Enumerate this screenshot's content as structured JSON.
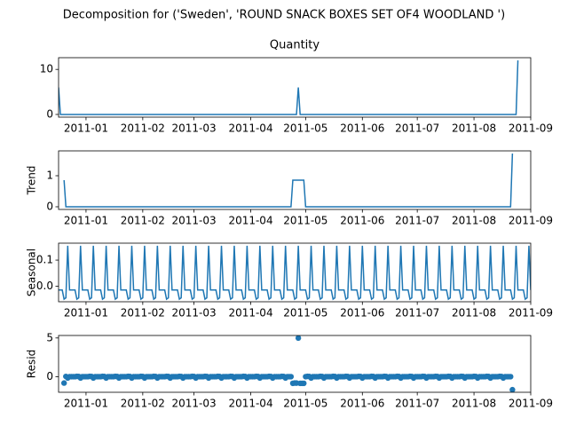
{
  "title": "Decomposition for ('Sweden', 'ROUND SNACK BOXES SET OF4 WOODLAND ')",
  "chart_data": [
    {
      "type": "line",
      "title": "Quantity",
      "color": "#1f77b4",
      "xlim": [
        0,
        258
      ],
      "xticks": [
        {
          "value": 15,
          "label": "2011-01"
        },
        {
          "value": 46,
          "label": "2011-02"
        },
        {
          "value": 74,
          "label": "2011-03"
        },
        {
          "value": 105,
          "label": "2011-04"
        },
        {
          "value": 135,
          "label": "2011-05"
        },
        {
          "value": 166,
          "label": "2011-06"
        },
        {
          "value": 196,
          "label": "2011-07"
        },
        {
          "value": 227,
          "label": "2011-08"
        },
        {
          "value": 258,
          "label": "2011-09"
        }
      ],
      "ylim": [
        -0.6,
        12.6
      ],
      "yticks": [
        0,
        10
      ],
      "values": [
        6,
        0,
        0,
        0,
        0,
        0,
        0,
        0,
        0,
        0,
        0,
        0,
        0,
        0,
        0,
        0,
        0,
        0,
        0,
        0,
        0,
        0,
        0,
        0,
        0,
        0,
        0,
        0,
        0,
        0,
        0,
        0,
        0,
        0,
        0,
        0,
        0,
        0,
        0,
        0,
        0,
        0,
        0,
        0,
        0,
        0,
        0,
        0,
        0,
        0,
        0,
        0,
        0,
        0,
        0,
        0,
        0,
        0,
        0,
        0,
        0,
        0,
        0,
        0,
        0,
        0,
        0,
        0,
        0,
        0,
        0,
        0,
        0,
        0,
        0,
        0,
        0,
        0,
        0,
        0,
        0,
        0,
        0,
        0,
        0,
        0,
        0,
        0,
        0,
        0,
        0,
        0,
        0,
        0,
        0,
        0,
        0,
        0,
        0,
        0,
        0,
        0,
        0,
        0,
        0,
        0,
        0,
        0,
        0,
        0,
        0,
        0,
        0,
        0,
        0,
        0,
        0,
        0,
        0,
        0,
        0,
        0,
        0,
        0,
        0,
        0,
        0,
        0,
        0,
        0,
        0,
        6,
        0,
        0,
        0,
        0,
        0,
        0,
        0,
        0,
        0,
        0,
        0,
        0,
        0,
        0,
        0,
        0,
        0,
        0,
        0,
        0,
        0,
        0,
        0,
        0,
        0,
        0,
        0,
        0,
        0,
        0,
        0,
        0,
        0,
        0,
        0,
        0,
        0,
        0,
        0,
        0,
        0,
        0,
        0,
        0,
        0,
        0,
        0,
        0,
        0,
        0,
        0,
        0,
        0,
        0,
        0,
        0,
        0,
        0,
        0,
        0,
        0,
        0,
        0,
        0,
        0,
        0,
        0,
        0,
        0,
        0,
        0,
        0,
        0,
        0,
        0,
        0,
        0,
        0,
        0,
        0,
        0,
        0,
        0,
        0,
        0,
        0,
        0,
        0,
        0,
        0,
        0,
        0,
        0,
        0,
        0,
        0,
        0,
        0,
        0,
        0,
        0,
        0,
        0,
        0,
        0,
        0,
        0,
        0,
        0,
        0,
        0,
        0,
        0,
        0,
        0,
        0,
        0,
        0,
        0,
        12
      ]
    },
    {
      "type": "line",
      "ylabel": "Trend",
      "color": "#1f77b4",
      "xlim": [
        0,
        258
      ],
      "xticks": [
        {
          "value": 15,
          "label": "2011-01"
        },
        {
          "value": 46,
          "label": "2011-02"
        },
        {
          "value": 74,
          "label": "2011-03"
        },
        {
          "value": 105,
          "label": "2011-04"
        },
        {
          "value": 135,
          "label": "2011-05"
        },
        {
          "value": 166,
          "label": "2011-06"
        },
        {
          "value": 196,
          "label": "2011-07"
        },
        {
          "value": 227,
          "label": "2011-08"
        },
        {
          "value": 258,
          "label": "2011-09"
        }
      ],
      "ylim": [
        -0.086,
        1.8
      ],
      "yticks": [
        0,
        1
      ],
      "values": [
        null,
        null,
        null,
        0.857,
        0,
        0,
        0,
        0,
        0,
        0,
        0,
        0,
        0,
        0,
        0,
        0,
        0,
        0,
        0,
        0,
        0,
        0,
        0,
        0,
        0,
        0,
        0,
        0,
        0,
        0,
        0,
        0,
        0,
        0,
        0,
        0,
        0,
        0,
        0,
        0,
        0,
        0,
        0,
        0,
        0,
        0,
        0,
        0,
        0,
        0,
        0,
        0,
        0,
        0,
        0,
        0,
        0,
        0,
        0,
        0,
        0,
        0,
        0,
        0,
        0,
        0,
        0,
        0,
        0,
        0,
        0,
        0,
        0,
        0,
        0,
        0,
        0,
        0,
        0,
        0,
        0,
        0,
        0,
        0,
        0,
        0,
        0,
        0,
        0,
        0,
        0,
        0,
        0,
        0,
        0,
        0,
        0,
        0,
        0,
        0,
        0,
        0,
        0,
        0,
        0,
        0,
        0,
        0,
        0,
        0,
        0,
        0,
        0,
        0,
        0,
        0,
        0,
        0,
        0,
        0,
        0,
        0,
        0,
        0,
        0,
        0,
        0,
        0,
        0.857,
        0.857,
        0.857,
        0.857,
        0.857,
        0.857,
        0.857,
        0,
        0,
        0,
        0,
        0,
        0,
        0,
        0,
        0,
        0,
        0,
        0,
        0,
        0,
        0,
        0,
        0,
        0,
        0,
        0,
        0,
        0,
        0,
        0,
        0,
        0,
        0,
        0,
        0,
        0,
        0,
        0,
        0,
        0,
        0,
        0,
        0,
        0,
        0,
        0,
        0,
        0,
        0,
        0,
        0,
        0,
        0,
        0,
        0,
        0,
        0,
        0,
        0,
        0,
        0,
        0,
        0,
        0,
        0,
        0,
        0,
        0,
        0,
        0,
        0,
        0,
        0,
        0,
        0,
        0,
        0,
        0,
        0,
        0,
        0,
        0,
        0,
        0,
        0,
        0,
        0,
        0,
        0,
        0,
        0,
        0,
        0,
        0,
        0,
        0,
        0,
        0,
        0,
        0,
        0,
        0,
        0,
        0,
        0,
        0,
        0,
        0,
        0,
        0,
        0,
        0,
        0,
        0,
        0,
        0,
        0,
        0,
        0,
        1.714,
        null,
        null,
        null
      ]
    },
    {
      "type": "line",
      "ylabel": "Seasonal",
      "color": "#1f77b4",
      "xlim": [
        0,
        258
      ],
      "xticks": [
        {
          "value": 15,
          "label": "2011-01"
        },
        {
          "value": 46,
          "label": "2011-02"
        },
        {
          "value": 74,
          "label": "2011-03"
        },
        {
          "value": 105,
          "label": "2011-04"
        },
        {
          "value": 135,
          "label": "2011-05"
        },
        {
          "value": 166,
          "label": "2011-06"
        },
        {
          "value": 196,
          "label": "2011-07"
        },
        {
          "value": 227,
          "label": "2011-08"
        },
        {
          "value": 258,
          "label": "2011-09"
        }
      ],
      "ylim": [
        -0.06,
        0.165
      ],
      "yticks": [
        {
          "value": 0,
          "label": "0.0"
        },
        {
          "value": 0.1,
          "label": "0.1"
        }
      ],
      "values": [
        -0.015,
        -0.015,
        -0.015,
        -0.05,
        -0.045,
        0.155,
        -0.015,
        -0.015,
        -0.015,
        -0.015,
        -0.05,
        -0.045,
        0.155,
        -0.015,
        -0.015,
        -0.015,
        -0.015,
        -0.05,
        -0.045,
        0.155,
        -0.015,
        -0.015,
        -0.015,
        -0.015,
        -0.05,
        -0.045,
        0.155,
        -0.015,
        -0.015,
        -0.015,
        -0.015,
        -0.05,
        -0.045,
        0.155,
        -0.015,
        -0.015,
        -0.015,
        -0.015,
        -0.05,
        -0.045,
        0.155,
        -0.015,
        -0.015,
        -0.015,
        -0.015,
        -0.05,
        -0.045,
        0.155,
        -0.015,
        -0.015,
        -0.015,
        -0.015,
        -0.05,
        -0.045,
        0.155,
        -0.015,
        -0.015,
        -0.015,
        -0.015,
        -0.05,
        -0.045,
        0.155,
        -0.015,
        -0.015,
        -0.015,
        -0.015,
        -0.05,
        -0.045,
        0.155,
        -0.015,
        -0.015,
        -0.015,
        -0.015,
        -0.05,
        -0.045,
        0.155,
        -0.015,
        -0.015,
        -0.015,
        -0.015,
        -0.05,
        -0.045,
        0.155,
        -0.015,
        -0.015,
        -0.015,
        -0.015,
        -0.05,
        -0.045,
        0.155,
        -0.015,
        -0.015,
        -0.015,
        -0.015,
        -0.05,
        -0.045,
        0.155,
        -0.015,
        -0.015,
        -0.015,
        -0.015,
        -0.05,
        -0.045,
        0.155,
        -0.015,
        -0.015,
        -0.015,
        -0.015,
        -0.05,
        -0.045,
        0.155,
        -0.015,
        -0.015,
        -0.015,
        -0.015,
        -0.05,
        -0.045,
        0.155,
        -0.015,
        -0.015,
        -0.015,
        -0.015,
        -0.05,
        -0.045,
        0.155,
        -0.015,
        -0.015,
        -0.015,
        -0.015,
        -0.05,
        -0.045,
        0.155,
        -0.015,
        -0.015,
        -0.015,
        -0.015,
        -0.05,
        -0.045,
        0.155,
        -0.015,
        -0.015,
        -0.015,
        -0.015,
        -0.05,
        -0.045,
        0.155,
        -0.015,
        -0.015,
        -0.015,
        -0.015,
        -0.05,
        -0.045,
        0.155,
        -0.015,
        -0.015,
        -0.015,
        -0.015,
        -0.05,
        -0.045,
        0.155,
        -0.015,
        -0.015,
        -0.015,
        -0.015,
        -0.05,
        -0.045,
        0.155,
        -0.015,
        -0.015,
        -0.015,
        -0.015,
        -0.05,
        -0.045,
        0.155,
        -0.015,
        -0.015,
        -0.015,
        -0.015,
        -0.05,
        -0.045,
        0.155,
        -0.015,
        -0.015,
        -0.015,
        -0.015,
        -0.05,
        -0.045,
        0.155,
        -0.015,
        -0.015,
        -0.015,
        -0.015,
        -0.05,
        -0.045,
        0.155,
        -0.015,
        -0.015,
        -0.015,
        -0.015,
        -0.05,
        -0.045,
        0.155,
        -0.015,
        -0.015,
        -0.015,
        -0.015,
        -0.05,
        -0.045,
        0.155,
        -0.015,
        -0.015,
        -0.015,
        -0.015,
        -0.05,
        -0.045,
        0.155,
        -0.015,
        -0.015,
        -0.015,
        -0.015,
        -0.05,
        -0.045,
        0.155,
        -0.015,
        -0.015,
        -0.015,
        -0.015,
        -0.05,
        -0.045,
        0.155,
        -0.015,
        -0.015,
        -0.015,
        -0.015,
        -0.05,
        -0.045,
        0.155,
        -0.015,
        -0.015,
        -0.015,
        -0.015,
        -0.05,
        -0.045,
        0.155,
        -0.015,
        -0.015,
        -0.015,
        -0.015,
        -0.05,
        -0.045,
        0.155,
        -0.015,
        -0.015,
        -0.015,
        -0.015,
        -0.05,
        -0.045,
        0.155,
        -0.015
      ]
    },
    {
      "type": "scatter",
      "ylabel": "Resid",
      "color": "#1f77b4",
      "xlim": [
        0,
        258
      ],
      "xticks": [
        {
          "value": 15,
          "label": "2011-01"
        },
        {
          "value": 46,
          "label": "2011-02"
        },
        {
          "value": 74,
          "label": "2011-03"
        },
        {
          "value": 105,
          "label": "2011-04"
        },
        {
          "value": 135,
          "label": "2011-05"
        },
        {
          "value": 166,
          "label": "2011-06"
        },
        {
          "value": 196,
          "label": "2011-07"
        },
        {
          "value": 227,
          "label": "2011-08"
        },
        {
          "value": 258,
          "label": "2011-09"
        }
      ],
      "ylim": [
        -1.997,
        5.321
      ],
      "yticks": [
        0,
        5
      ],
      "values": [
        null,
        null,
        null,
        -0.807,
        0.045,
        -0.155,
        0.015,
        0.015,
        0.015,
        0.015,
        0.05,
        0.045,
        -0.155,
        0.015,
        0.015,
        0.015,
        0.015,
        0.05,
        0.045,
        -0.155,
        0.015,
        0.015,
        0.015,
        0.015,
        0.05,
        0.045,
        -0.155,
        0.015,
        0.015,
        0.015,
        0.015,
        0.05,
        0.045,
        -0.155,
        0.015,
        0.015,
        0.015,
        0.015,
        0.05,
        0.045,
        -0.155,
        0.015,
        0.015,
        0.015,
        0.015,
        0.05,
        0.045,
        -0.155,
        0.015,
        0.015,
        0.015,
        0.015,
        0.05,
        0.045,
        -0.155,
        0.015,
        0.015,
        0.015,
        0.015,
        0.05,
        0.045,
        -0.155,
        0.015,
        0.015,
        0.015,
        0.015,
        0.05,
        0.045,
        -0.155,
        0.015,
        0.015,
        0.015,
        0.015,
        0.05,
        0.045,
        -0.155,
        0.015,
        0.015,
        0.015,
        0.015,
        0.05,
        0.045,
        -0.155,
        0.015,
        0.015,
        0.015,
        0.015,
        0.05,
        0.045,
        -0.155,
        0.015,
        0.015,
        0.015,
        0.015,
        0.05,
        0.045,
        -0.155,
        0.015,
        0.015,
        0.015,
        0.015,
        0.05,
        0.045,
        -0.155,
        0.015,
        0.015,
        0.015,
        0.015,
        0.05,
        0.045,
        -0.155,
        0.015,
        0.015,
        0.015,
        0.015,
        0.05,
        0.045,
        -0.155,
        0.015,
        0.015,
        0.015,
        0.015,
        0.05,
        0.045,
        -0.155,
        0.015,
        0.015,
        0.015,
        -0.842,
        -0.807,
        -0.812,
        4.988,
        -0.842,
        -0.842,
        -0.842,
        0.015,
        0.05,
        0.045,
        -0.155,
        0.015,
        0.015,
        0.015,
        0.015,
        0.05,
        0.045,
        -0.155,
        0.015,
        0.015,
        0.015,
        0.015,
        0.05,
        0.045,
        -0.155,
        0.015,
        0.015,
        0.015,
        0.015,
        0.05,
        0.045,
        -0.155,
        0.015,
        0.015,
        0.015,
        0.015,
        0.05,
        0.045,
        -0.155,
        0.015,
        0.015,
        0.015,
        0.015,
        0.05,
        0.045,
        -0.155,
        0.015,
        0.015,
        0.015,
        0.015,
        0.05,
        0.045,
        -0.155,
        0.015,
        0.015,
        0.015,
        0.015,
        0.05,
        0.045,
        -0.155,
        0.015,
        0.015,
        0.015,
        0.015,
        0.05,
        0.045,
        -0.155,
        0.015,
        0.015,
        0.015,
        0.015,
        0.05,
        0.045,
        -0.155,
        0.015,
        0.015,
        0.015,
        0.015,
        0.05,
        0.045,
        -0.155,
        0.015,
        0.015,
        0.015,
        0.015,
        0.05,
        0.045,
        -0.155,
        0.015,
        0.015,
        0.015,
        0.015,
        0.05,
        0.045,
        -0.155,
        0.015,
        0.015,
        0.015,
        0.015,
        0.05,
        0.045,
        -0.155,
        0.015,
        0.015,
        0.015,
        0.015,
        0.05,
        0.045,
        -0.155,
        0.015,
        0.015,
        0.015,
        0.015,
        0.05,
        0.045,
        -0.155,
        0.015,
        0.015,
        0.015,
        0.015,
        -1.664,
        null,
        null,
        null
      ]
    }
  ]
}
